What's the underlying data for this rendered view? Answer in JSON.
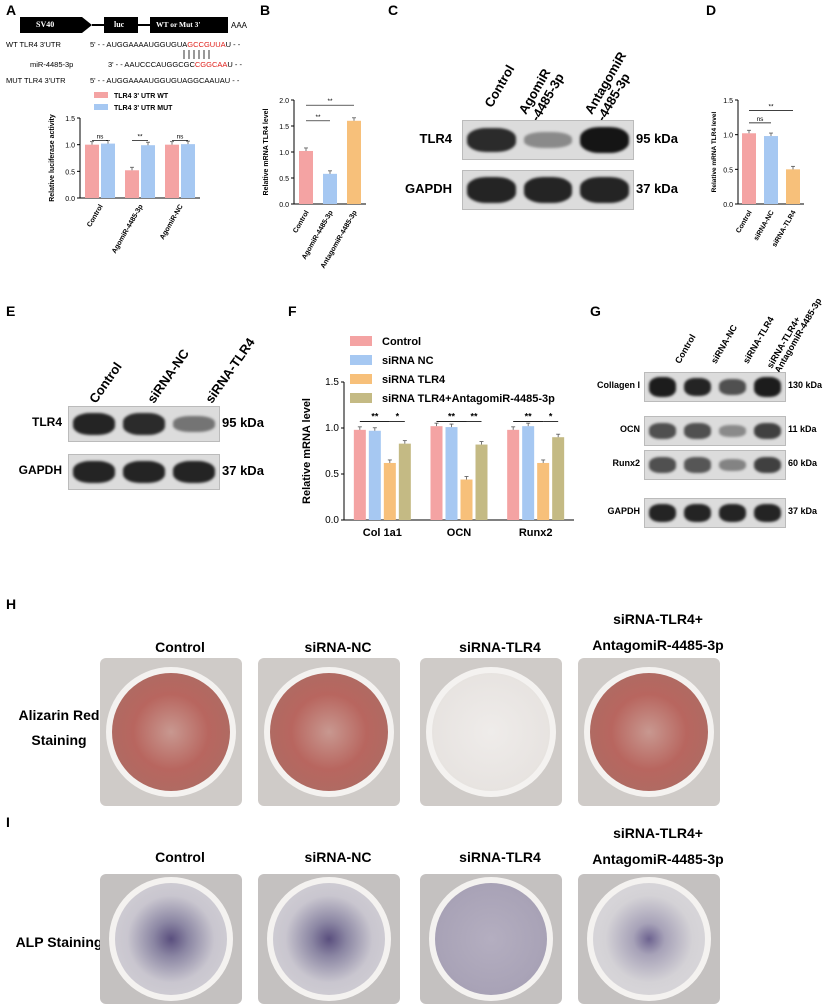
{
  "panels": {
    "A": "A",
    "B": "B",
    "C": "C",
    "D": "D",
    "E": "E",
    "F": "F",
    "G": "G",
    "H": "H",
    "I": "I"
  },
  "colors": {
    "wt": "#f4a3a3",
    "mut": "#a6c8f2",
    "control": "#f4a3a3",
    "sirna_nc": "#a6c8f2",
    "sirna_tlr4": "#f7c07a",
    "sirna_tlr4_antagomir": "#c4ba84",
    "agomir": "#a6c8f2",
    "antagomir": "#f7c07a"
  },
  "construct": {
    "sv40": "SV40",
    "luc": "luc",
    "wt_mut": "WT or Mut 3'",
    "polya": "AAA",
    "wt_label": "WT TLR4 3'UTR",
    "wt_prefix": "5' - - AUGGAAAAUGGUGUA",
    "wt_site": "GCCGUUA",
    "wt_suffix": "U - -",
    "mir_label": "miR-4485-3p",
    "mir_prefix": "3' - - AAUCCCAUGGCGC",
    "mir_site": "CGGCAA",
    "mir_suffix": "U - -",
    "mut_label": "MUT TLR4 3'UTR",
    "mut_seq": "5' - - AUGGAAAAUGGUGUAGGCAAUAU - -"
  },
  "chart_data": [
    {
      "panel": "A",
      "type": "bar",
      "ylabel": "Relative luciferase activity",
      "ylim": [
        0,
        1.5
      ],
      "yticks": [
        "0.0",
        "0.5",
        "1.0",
        "1.5"
      ],
      "categories": [
        "Control",
        "AgomiR-4485-3p",
        "AgomiR-NC"
      ],
      "series": [
        {
          "name": "TLR4 3' UTR WT",
          "values": [
            1.0,
            0.52,
            1.0
          ]
        },
        {
          "name": "TLR4 3' UTR MUT",
          "values": [
            1.02,
            0.99,
            1.01
          ]
        }
      ],
      "annotations": [
        "ns",
        "**",
        "ns"
      ]
    },
    {
      "panel": "B",
      "type": "bar",
      "ylabel": "Relative mRNA TLR4 level",
      "ylim": [
        0,
        2.0
      ],
      "yticks": [
        "0.0",
        "0.5",
        "1.0",
        "1.5",
        "2.0"
      ],
      "categories": [
        "Control",
        "AgomiR-4485-3p",
        "AntagomiR-4485-3p"
      ],
      "values": [
        1.02,
        0.58,
        1.6
      ],
      "annotations": [
        "**",
        "**"
      ]
    },
    {
      "panel": "D",
      "type": "bar",
      "ylabel": "Relative mRNA TLR4 level",
      "ylim": [
        0,
        1.5
      ],
      "yticks": [
        "0.0",
        "0.5",
        "1.0",
        "1.5"
      ],
      "categories": [
        "Control",
        "siRNA-NC",
        "siRNA-TLR4"
      ],
      "values": [
        1.02,
        0.98,
        0.5
      ],
      "annotations": [
        "ns",
        "**"
      ]
    },
    {
      "panel": "F",
      "type": "bar",
      "ylabel": "Relative mRNA level",
      "ylim": [
        0,
        1.5
      ],
      "yticks": [
        "0.0",
        "0.5",
        "1.0",
        "1.5"
      ],
      "categories": [
        "Col 1a1",
        "OCN",
        "Runx2"
      ],
      "series": [
        {
          "name": "Control",
          "values": [
            0.98,
            1.02,
            0.98
          ]
        },
        {
          "name": "siRNA NC",
          "values": [
            0.97,
            1.01,
            1.02
          ]
        },
        {
          "name": "siRNA TLR4",
          "values": [
            0.62,
            0.44,
            0.62
          ]
        },
        {
          "name": "siRNA TLR4+AntagomiR-4485-3p",
          "values": [
            0.83,
            0.82,
            0.9
          ]
        }
      ],
      "annotations": [
        "**",
        "*",
        "**",
        "**",
        "**",
        "*"
      ]
    }
  ],
  "blots": {
    "C": {
      "lanes": [
        "Control",
        "AgomiR\n-4485-3p",
        "AntagomiR\n-4485-3p"
      ],
      "rows": [
        {
          "name": "TLR4",
          "kda": "95 kDa"
        },
        {
          "name": "GAPDH",
          "kda": "37 kDa"
        }
      ]
    },
    "E": {
      "lanes": [
        "Control",
        "siRNA-NC",
        "siRNA-TLR4"
      ],
      "rows": [
        {
          "name": "TLR4",
          "kda": "95 kDa"
        },
        {
          "name": "GAPDH",
          "kda": "37 kDa"
        }
      ]
    },
    "G": {
      "lanes": [
        "Control",
        "siRNA-NC",
        "siRNA-TLR4",
        "siRNA-TLR4+\nAntagomiR-4485-3p"
      ],
      "rows": [
        {
          "name": "Collagen I",
          "kda": "130 kDa"
        },
        {
          "name": "OCN",
          "kda": "11 kDa"
        },
        {
          "name": "Runx2",
          "kda": "60 kDa"
        },
        {
          "name": "GAPDH",
          "kda": "37 kDa"
        }
      ]
    }
  },
  "staining": {
    "H": {
      "row_label": "Alizarin Red\nStaining",
      "headers": [
        "Control",
        "siRNA-NC",
        "siRNA-TLR4",
        "siRNA-TLR4+\nAntagomiR-4485-3p"
      ]
    },
    "I": {
      "row_label": "ALP Staining",
      "headers": [
        "Control",
        "siRNA-NC",
        "siRNA-TLR4",
        "siRNA-TLR4+\nAntagomiR-4485-3p"
      ]
    }
  }
}
